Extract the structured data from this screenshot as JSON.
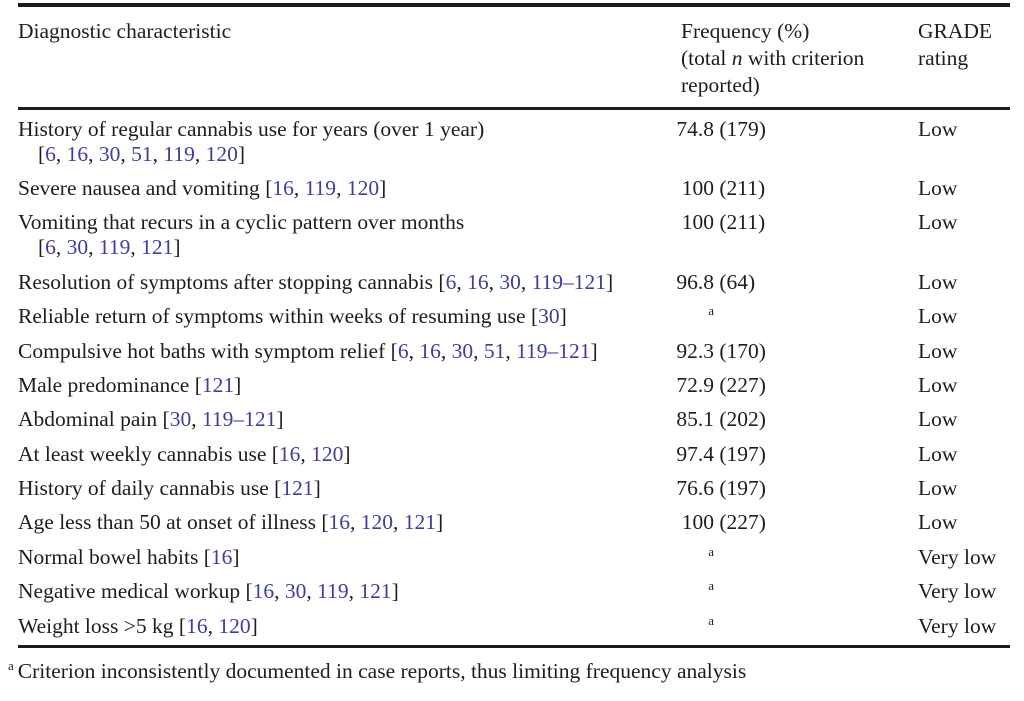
{
  "colors": {
    "text": "#1d1d1f",
    "citation_link": "#3d3da2",
    "rule": "#1b1b1b",
    "background": "#ffffff"
  },
  "header": {
    "characteristic": "Diagnostic characteristic",
    "frequency_line1": "Frequency (%)",
    "frequency_line2_pre": "(total ",
    "frequency_line2_italic": "n",
    "frequency_line2_post": " with criterion",
    "frequency_line3": "reported)",
    "grade_line1": "GRADE",
    "grade_line2": "rating"
  },
  "rows": [
    {
      "text": "History of regular cannabis use for years (over 1 year)",
      "citations": [
        "6",
        "16",
        "30",
        "51",
        "119",
        "120"
      ],
      "citations_new_line": true,
      "pct": "74.8",
      "n": "(179)",
      "footnote_marker": false,
      "grade": "Low"
    },
    {
      "text": "Severe nausea and vomiting",
      "citations": [
        "16",
        "119",
        "120"
      ],
      "citations_new_line": false,
      "pct": "100",
      "n": "(211)",
      "footnote_marker": false,
      "grade": "Low"
    },
    {
      "text": "Vomiting that recurs in a cyclic pattern over months",
      "citations": [
        "6",
        "30",
        "119",
        "121"
      ],
      "citations_new_line": true,
      "pct": "100",
      "n": "(211)",
      "footnote_marker": false,
      "grade": "Low"
    },
    {
      "text": "Resolution of symptoms after stopping cannabis",
      "citations": [
        "6",
        "16",
        "30",
        "119–121"
      ],
      "citations_new_line": false,
      "pct": "96.8",
      "n": "(64)",
      "footnote_marker": false,
      "grade": "Low"
    },
    {
      "text": "Reliable return of symptoms within weeks of resuming use",
      "citations": [
        "30"
      ],
      "citations_new_line": false,
      "pct": null,
      "n": null,
      "footnote_marker": true,
      "grade": "Low"
    },
    {
      "text": "Compulsive hot baths with symptom relief",
      "citations": [
        "6",
        "16",
        "30",
        "51",
        "119–121"
      ],
      "citations_new_line": false,
      "pct": "92.3",
      "n": "(170)",
      "footnote_marker": false,
      "grade": "Low"
    },
    {
      "text": "Male predominance",
      "citations": [
        "121"
      ],
      "citations_new_line": false,
      "pct": "72.9",
      "n": "(227)",
      "footnote_marker": false,
      "grade": "Low"
    },
    {
      "text": "Abdominal pain",
      "citations": [
        "30",
        "119–121"
      ],
      "citations_new_line": false,
      "pct": "85.1",
      "n": "(202)",
      "footnote_marker": false,
      "grade": "Low"
    },
    {
      "text": "At least weekly cannabis use",
      "citations": [
        "16",
        "120"
      ],
      "citations_new_line": false,
      "pct": "97.4",
      "n": "(197)",
      "footnote_marker": false,
      "grade": "Low"
    },
    {
      "text": "History of daily cannabis use",
      "citations": [
        "121"
      ],
      "citations_new_line": false,
      "pct": "76.6",
      "n": "(197)",
      "footnote_marker": false,
      "grade": "Low"
    },
    {
      "text": "Age less than 50 at onset of illness",
      "citations": [
        "16",
        "120",
        "121"
      ],
      "citations_new_line": false,
      "pct": "100",
      "n": "(227)",
      "footnote_marker": false,
      "grade": "Low"
    },
    {
      "text": "Normal bowel habits",
      "citations": [
        "16"
      ],
      "citations_new_line": false,
      "pct": null,
      "n": null,
      "footnote_marker": true,
      "grade": "Very low"
    },
    {
      "text": "Negative medical workup",
      "citations": [
        "16",
        "30",
        "119",
        "121"
      ],
      "citations_new_line": false,
      "pct": null,
      "n": null,
      "footnote_marker": true,
      "grade": "Very low"
    },
    {
      "text": "Weight loss >5 kg",
      "citations": [
        "16",
        "120"
      ],
      "citations_new_line": false,
      "pct": null,
      "n": null,
      "footnote_marker": true,
      "grade": "Very low"
    }
  ],
  "footnote": {
    "marker": "a",
    "text": "Criterion inconsistently documented in case reports, thus limiting frequency analysis"
  }
}
